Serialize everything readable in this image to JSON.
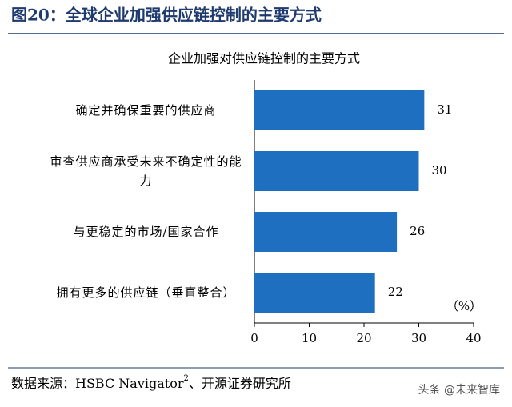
{
  "header": {
    "title": "图20：全球企业加强供应链控制的主要方式"
  },
  "chart_data": {
    "type": "hbar",
    "title": "企业加强对供应链控制的主要方式",
    "categories": [
      "确定并确保重要的供应商",
      "审查供应商承受未来不确定性的能力",
      "与更稳定的市场/国家合作",
      "拥有更多的供应链（垂直整合）"
    ],
    "values": [
      31,
      30,
      26,
      22
    ],
    "color": "#1f6fc1",
    "xlim": [
      0,
      40
    ],
    "xticks": [
      0,
      10,
      20,
      30,
      40
    ],
    "unit_label": "（%）",
    "grid": false
  },
  "footer": {
    "source_prefix": "数据来源：HSBC Navigator",
    "source_sup": "2",
    "source_suffix": "、开源证券研究所",
    "watermark": "头条 @未来智库"
  }
}
